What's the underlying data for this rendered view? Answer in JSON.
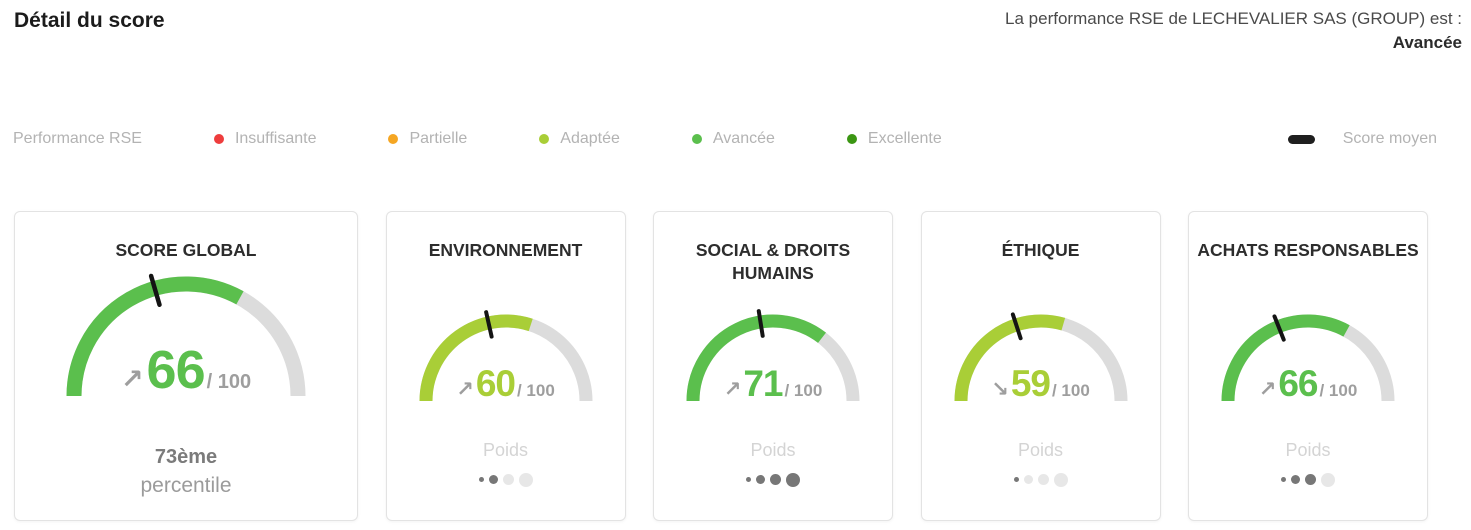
{
  "page_title": "Détail du score",
  "header": {
    "performance_sentence": "La performance RSE de LECHEVALIER SAS (GROUP) est :",
    "performance_level": "Avancée"
  },
  "legend": {
    "title": "Performance RSE",
    "levels": [
      {
        "label": "Insuffisante",
        "color": "#ee3d3d"
      },
      {
        "label": "Partielle",
        "color": "#f5a623"
      },
      {
        "label": "Adaptée",
        "color": "#a9ce37"
      },
      {
        "label": "Avancée",
        "color": "#5bbf4d"
      },
      {
        "label": "Excellente",
        "color": "#3b9613"
      }
    ],
    "average_marker": {
      "label": "Score moyen",
      "color": "#1f1f1f"
    }
  },
  "cards": [
    {
      "title": "SCORE GLOBAL",
      "score": 66,
      "score_display": "66",
      "max_display": "/ 100",
      "trend": "up",
      "trend_glyph": "↗",
      "color": "#5bbf4d",
      "average": 41,
      "footer": {
        "type": "percentile",
        "value": "73ème",
        "label": "percentile"
      }
    },
    {
      "title": "ENVIRONNEMENT",
      "score": 60,
      "score_display": "60",
      "max_display": "/ 100",
      "trend": "up",
      "trend_glyph": "↗",
      "color": "#a9ce37",
      "average": 43,
      "footer": {
        "type": "weight",
        "label": "Poids",
        "filled": 2,
        "total": 4
      }
    },
    {
      "title": "SOCIAL & DROITS HUMAINS",
      "score": 71,
      "score_display": "71",
      "max_display": "/ 100",
      "trend": "up",
      "trend_glyph": "↗",
      "color": "#5bbf4d",
      "average": 45,
      "footer": {
        "type": "weight",
        "label": "Poids",
        "filled": 4,
        "total": 4
      }
    },
    {
      "title": "ÉTHIQUE",
      "score": 59,
      "score_display": "59",
      "max_display": "/ 100",
      "trend": "down",
      "trend_glyph": "↘",
      "color": "#a9ce37",
      "average": 40,
      "footer": {
        "type": "weight",
        "label": "Poids",
        "filled": 1,
        "total": 4
      }
    },
    {
      "title": "ACHATS RESPONSABLES",
      "score": 66,
      "score_display": "66",
      "max_display": "/ 100",
      "trend": "up",
      "trend_glyph": "↗",
      "color": "#5bbf4d",
      "average": 38,
      "footer": {
        "type": "weight",
        "label": "Poids",
        "filled": 3,
        "total": 4
      }
    }
  ],
  "chart_data": [
    {
      "type": "gauge",
      "title": "SCORE GLOBAL",
      "value": 66,
      "range": [
        0,
        100
      ],
      "average_marker": 41,
      "trend": "up",
      "unit": "/ 100",
      "percentile": "73ème percentile",
      "color": "#5bbf4d"
    },
    {
      "type": "gauge",
      "title": "ENVIRONNEMENT",
      "value": 60,
      "range": [
        0,
        100
      ],
      "average_marker": 43,
      "trend": "up",
      "unit": "/ 100",
      "weight": "2/4",
      "color": "#a9ce37"
    },
    {
      "type": "gauge",
      "title": "SOCIAL & DROITS HUMAINS",
      "value": 71,
      "range": [
        0,
        100
      ],
      "average_marker": 45,
      "trend": "up",
      "unit": "/ 100",
      "weight": "4/4",
      "color": "#5bbf4d"
    },
    {
      "type": "gauge",
      "title": "ÉTHIQUE",
      "value": 59,
      "range": [
        0,
        100
      ],
      "average_marker": 40,
      "trend": "down",
      "unit": "/ 100",
      "weight": "1/4",
      "color": "#a9ce37"
    },
    {
      "type": "gauge",
      "title": "ACHATS RESPONSABLES",
      "value": 66,
      "range": [
        0,
        100
      ],
      "average_marker": 38,
      "trend": "up",
      "unit": "/ 100",
      "weight": "3/4",
      "color": "#5bbf4d"
    }
  ],
  "colors": {
    "track": "#dcdcdc",
    "tick": "#141414",
    "trend_arrow": "#9e9e9e"
  }
}
